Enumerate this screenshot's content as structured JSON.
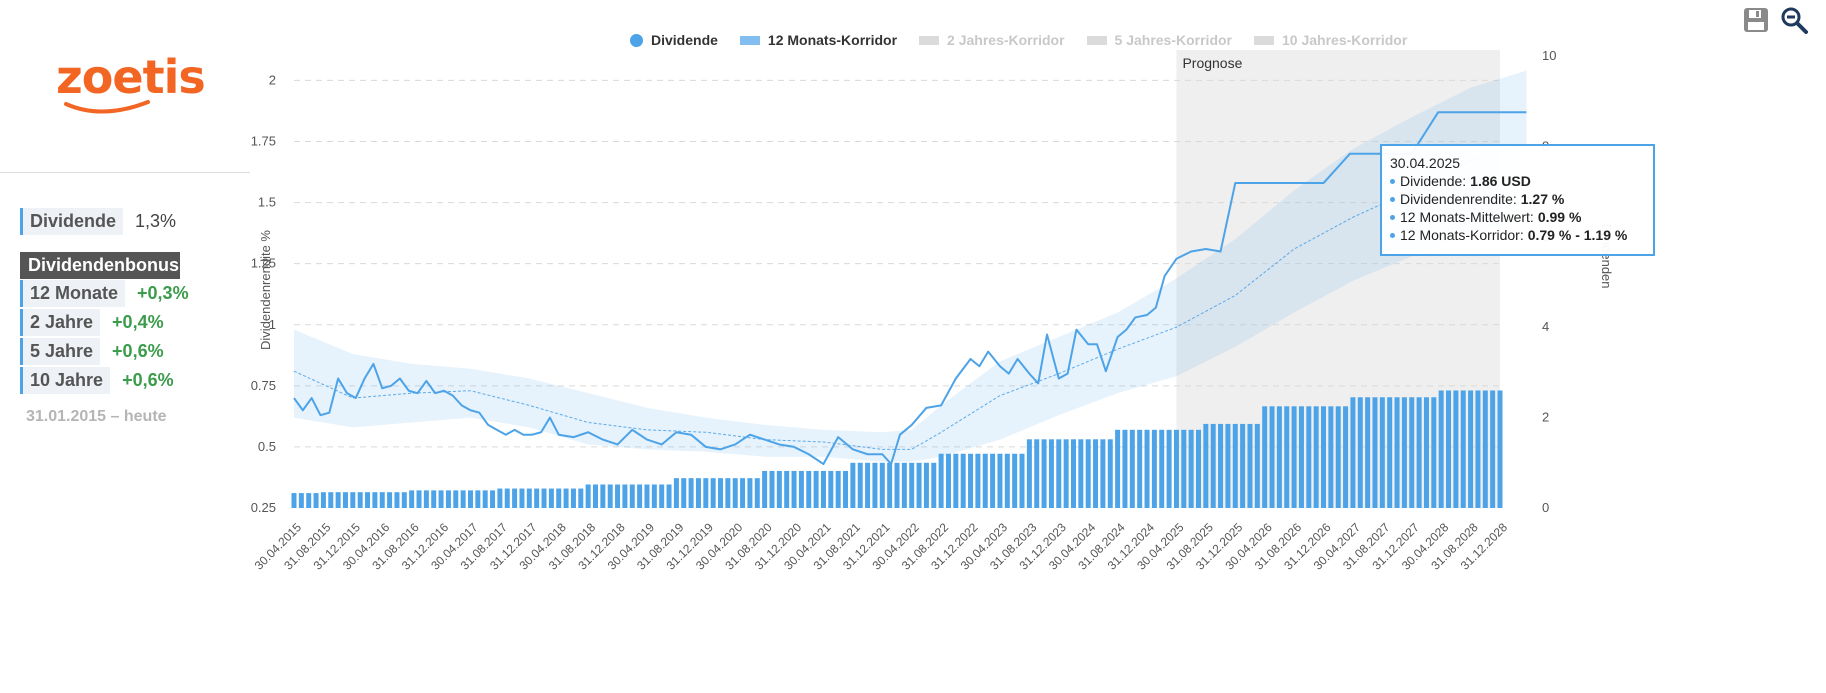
{
  "brand": {
    "logo_text": "zoetis",
    "logo_color": "#f26522"
  },
  "sidebar": {
    "dividend_label": "Dividende",
    "dividend_value": "1,3%",
    "bonus_title": "Dividendenbonus",
    "bonus": [
      {
        "label": "12 Monate",
        "value": "+0,3%"
      },
      {
        "label": "2 Jahre",
        "value": "+0,4%"
      },
      {
        "label": "5 Jahre",
        "value": "+0,6%"
      },
      {
        "label": "10 Jahre",
        "value": "+0,6%"
      }
    ],
    "period": "31.01.2015 – heute"
  },
  "legend": [
    {
      "label": "Dividende",
      "active": true
    },
    {
      "label": "12 Monats-Korridor",
      "active": true
    },
    {
      "label": "2 Jahres-Korridor",
      "active": false
    },
    {
      "label": "5 Jahres-Korridor",
      "active": false
    },
    {
      "label": "10 Jahres-Korridor",
      "active": false
    }
  ],
  "tools": {
    "save": "save-icon",
    "zoom": "zoom-out-icon"
  },
  "tooltip": {
    "date": "30.04.2025",
    "rows": [
      {
        "label": "Dividende:",
        "value": "1.86 USD"
      },
      {
        "label": "Dividendenrendite:",
        "value": "1.27 %"
      },
      {
        "label": "12 Monats-Mittelwert:",
        "value": "0.99 %"
      },
      {
        "label": "12 Monats-Korridor:",
        "value": "0.79 % - 1.19 %"
      }
    ]
  },
  "colors": {
    "accent": "#4da3e8",
    "forecast_bg": "#efefef",
    "positive": "#3b9c4b"
  },
  "chart_data": {
    "type": "line+bar",
    "forecast_label": "Prognose",
    "forecast_start": "30.04.2025",
    "y_left": {
      "label": "Dividendenrendite %",
      "ticks": [
        "0.25",
        "0.5",
        "0.75",
        "1",
        "1.25",
        "1.5",
        "1.75",
        "2"
      ],
      "min": 0.25,
      "max": 2.1
    },
    "y_right": {
      "label": "Dividenden",
      "ticks": [
        "0",
        "2",
        "4",
        "6",
        "8",
        "10"
      ],
      "min": 0,
      "max": 10
    },
    "x_ticks": [
      "30.04.2015",
      "31.08.2015",
      "31.12.2015",
      "30.04.2016",
      "31.08.2016",
      "31.12.2016",
      "30.04.2017",
      "31.08.2017",
      "31.12.2017",
      "30.04.2018",
      "31.08.2018",
      "31.12.2018",
      "30.04.2019",
      "31.08.2019",
      "31.12.2019",
      "30.04.2020",
      "31.08.2020",
      "31.12.2020",
      "30.04.2021",
      "31.08.2021",
      "31.12.2021",
      "30.04.2022",
      "31.08.2022",
      "31.12.2022",
      "30.04.2023",
      "31.08.2023",
      "31.12.2023",
      "30.04.2024",
      "31.08.2024",
      "31.12.2024",
      "30.04.2025",
      "31.08.2025",
      "31.12.2025",
      "30.04.2026",
      "31.08.2026",
      "31.12.2026",
      "30.04.2027",
      "31.08.2027",
      "31.12.2027",
      "30.04.2028",
      "31.08.2028",
      "31.12.2028"
    ],
    "dividend_series": {
      "name": "Dividende",
      "segments": [
        {
          "from": 0,
          "to": 1,
          "value": 0.33
        },
        {
          "from": 1,
          "to": 4,
          "value": 0.35
        },
        {
          "from": 4,
          "to": 7,
          "value": 0.39
        },
        {
          "from": 7,
          "to": 10,
          "value": 0.43
        },
        {
          "from": 10,
          "to": 13,
          "value": 0.52
        },
        {
          "from": 13,
          "to": 16,
          "value": 0.66
        },
        {
          "from": 16,
          "to": 19,
          "value": 0.82
        },
        {
          "from": 19,
          "to": 22,
          "value": 1.0
        },
        {
          "from": 22,
          "to": 25,
          "value": 1.2
        },
        {
          "from": 25,
          "to": 28,
          "value": 1.52
        },
        {
          "from": 28,
          "to": 31,
          "value": 1.73
        },
        {
          "from": 31,
          "to": 33,
          "value": 1.86
        },
        {
          "from": 33,
          "to": 36,
          "value": 2.25
        },
        {
          "from": 36,
          "to": 39,
          "value": 2.45
        },
        {
          "from": 39,
          "to": 42,
          "value": 2.6
        }
      ]
    },
    "yield_series": {
      "name": "Dividendenrendite",
      "x": [
        0,
        0.3,
        0.6,
        0.9,
        1.2,
        1.5,
        1.8,
        2.1,
        2.4,
        2.7,
        3.0,
        3.3,
        3.6,
        3.9,
        4.2,
        4.5,
        4.8,
        5.1,
        5.4,
        5.7,
        6.0,
        6.3,
        6.6,
        6.9,
        7.2,
        7.5,
        7.8,
        8.1,
        8.4,
        8.7,
        9.0,
        9.5,
        10.0,
        10.5,
        11.0,
        11.5,
        12.0,
        12.5,
        13.0,
        13.5,
        14.0,
        14.5,
        15.0,
        15.5,
        16.0,
        16.5,
        17.0,
        17.5,
        18.0,
        18.5,
        19.0,
        19.5,
        20.0,
        20.3,
        20.6,
        21.0,
        21.5,
        22.0,
        22.5,
        23.0,
        23.3,
        23.6,
        24.0,
        24.3,
        24.6,
        25.0,
        25.3,
        25.6,
        26.0,
        26.3,
        26.6,
        27.0,
        27.3,
        27.6,
        28.0,
        28.3,
        28.6,
        29.0,
        29.3,
        29.6,
        30.0,
        30.5,
        31.0,
        31.5,
        32.0,
        32.9,
        33.0,
        34.0,
        35.0,
        35.9,
        36.0,
        37.0,
        38.0,
        38.9,
        39.0,
        40.0,
        41.0,
        41.9
      ],
      "values": [
        0.7,
        0.65,
        0.7,
        0.63,
        0.64,
        0.78,
        0.72,
        0.7,
        0.78,
        0.84,
        0.74,
        0.75,
        0.78,
        0.73,
        0.72,
        0.77,
        0.72,
        0.73,
        0.71,
        0.67,
        0.65,
        0.64,
        0.59,
        0.57,
        0.55,
        0.57,
        0.55,
        0.55,
        0.56,
        0.62,
        0.55,
        0.54,
        0.56,
        0.53,
        0.51,
        0.57,
        0.53,
        0.51,
        0.56,
        0.55,
        0.5,
        0.49,
        0.51,
        0.55,
        0.53,
        0.51,
        0.5,
        0.47,
        0.43,
        0.54,
        0.49,
        0.47,
        0.47,
        0.43,
        0.55,
        0.59,
        0.66,
        0.67,
        0.78,
        0.86,
        0.83,
        0.89,
        0.83,
        0.8,
        0.86,
        0.8,
        0.76,
        0.96,
        0.78,
        0.8,
        0.98,
        0.92,
        0.92,
        0.81,
        0.95,
        0.98,
        1.03,
        1.04,
        1.07,
        1.2,
        1.27,
        1.3,
        1.31,
        1.3,
        1.58,
        1.58,
        1.58,
        1.58,
        1.58,
        1.7,
        1.7,
        1.7,
        1.7,
        1.87,
        1.87,
        1.87,
        1.87,
        1.87
      ]
    },
    "mean_series": {
      "name": "12 Monats-Mittelwert",
      "x": [
        0,
        2,
        4,
        6,
        8,
        10,
        12,
        14,
        16,
        18,
        20,
        21,
        22,
        24,
        26,
        28,
        30,
        32,
        34,
        36,
        38,
        40,
        41.9
      ],
      "values": [
        0.81,
        0.7,
        0.72,
        0.73,
        0.67,
        0.6,
        0.57,
        0.56,
        0.53,
        0.52,
        0.49,
        0.49,
        0.56,
        0.71,
        0.8,
        0.9,
        0.99,
        1.12,
        1.31,
        1.44,
        1.55,
        1.67,
        1.74
      ]
    },
    "corridor": {
      "name": "12 Monats-Korridor",
      "x": [
        0,
        2,
        4,
        6,
        8,
        10,
        12,
        14,
        16,
        18,
        20,
        21,
        22,
        24,
        26,
        28,
        30,
        32,
        34,
        36,
        38,
        40,
        41.9
      ],
      "upper": [
        0.98,
        0.88,
        0.84,
        0.82,
        0.78,
        0.72,
        0.66,
        0.62,
        0.59,
        0.57,
        0.56,
        0.57,
        0.67,
        0.85,
        0.95,
        1.05,
        1.19,
        1.35,
        1.55,
        1.72,
        1.85,
        1.97,
        2.04
      ],
      "lower": [
        0.62,
        0.58,
        0.6,
        0.62,
        0.58,
        0.51,
        0.49,
        0.48,
        0.46,
        0.46,
        0.44,
        0.44,
        0.46,
        0.53,
        0.63,
        0.72,
        0.79,
        0.91,
        1.05,
        1.18,
        1.28,
        1.38,
        1.41
      ]
    }
  }
}
